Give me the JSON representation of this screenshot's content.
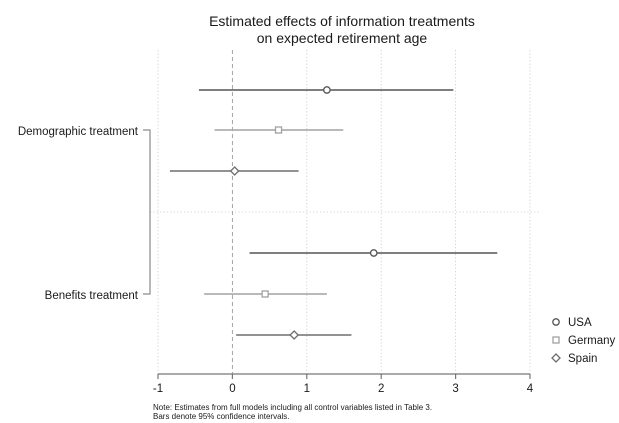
{
  "chart_data": {
    "type": "scatter",
    "subtype": "coefficient-plot",
    "title": [
      "Estimated effects of information treatments",
      "on expected retirement age"
    ],
    "groups": [
      "Demographic treatment",
      "Benefits treatment"
    ],
    "series": [
      {
        "name": "USA",
        "marker": "circle",
        "color": "#555555",
        "points": [
          {
            "group": "Demographic treatment",
            "estimate": 1.27,
            "ci": [
              -0.45,
              2.97
            ]
          },
          {
            "group": "Benefits treatment",
            "estimate": 1.9,
            "ci": [
              0.23,
              3.56
            ]
          }
        ]
      },
      {
        "name": "Germany",
        "marker": "square",
        "color": "#a2a2a2",
        "points": [
          {
            "group": "Demographic treatment",
            "estimate": 0.62,
            "ci": [
              -0.24,
              1.49
            ]
          },
          {
            "group": "Benefits treatment",
            "estimate": 0.44,
            "ci": [
              -0.38,
              1.27
            ]
          }
        ]
      },
      {
        "name": "Spain",
        "marker": "diamond",
        "color": "#6e6e6e",
        "points": [
          {
            "group": "Demographic treatment",
            "estimate": 0.03,
            "ci": [
              -0.84,
              0.89
            ]
          },
          {
            "group": "Benefits treatment",
            "estimate": 0.83,
            "ci": [
              0.05,
              1.6
            ]
          }
        ]
      }
    ],
    "xlim": [
      -1,
      4
    ],
    "xticks": [
      "-1",
      "0",
      "1",
      "2",
      "3",
      "4"
    ],
    "reference_line": 0,
    "grid": true,
    "legend_position": "right",
    "note": [
      "Note: Estimates from full models including all control variables listed in Table 3.",
      "Bars denote 95% confidence intervals."
    ]
  }
}
